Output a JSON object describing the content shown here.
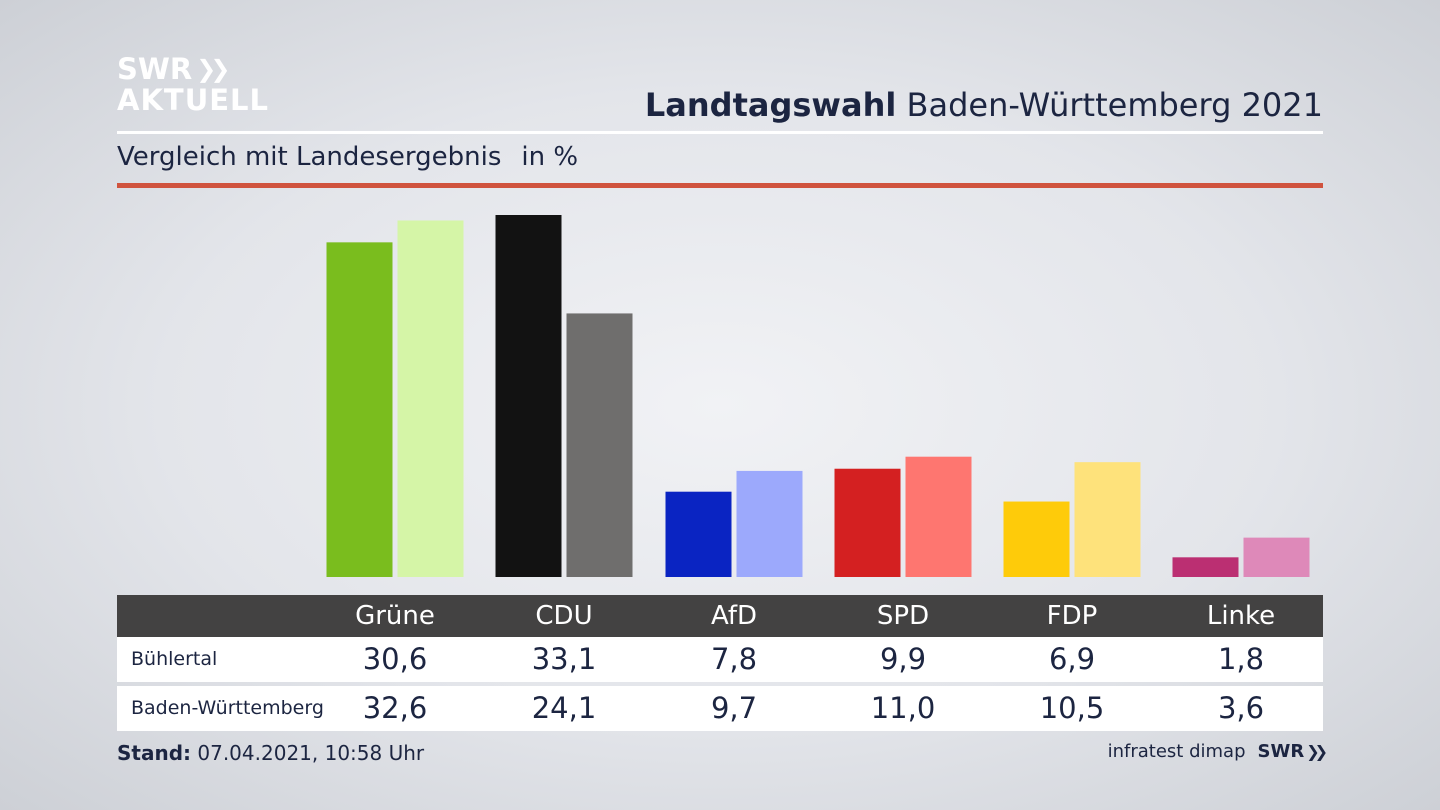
{
  "header": {
    "logo_line1": "SWR",
    "logo_line2": "AKTUELL",
    "title_bold": "Landtagswahl",
    "title_rest": "Baden-Württemberg 2021",
    "subtitle": "Vergleich mit Landesergebnis",
    "unit": "in %"
  },
  "chart_data": {
    "type": "bar",
    "categories": [
      "Grüne",
      "CDU",
      "AfD",
      "SPD",
      "FDP",
      "Linke"
    ],
    "series": [
      {
        "name": "Bühlertal",
        "values": [
          30.6,
          33.1,
          7.8,
          9.9,
          6.9,
          1.8
        ]
      },
      {
        "name": "Baden-Württemberg",
        "values": [
          32.6,
          24.1,
          9.7,
          11.0,
          10.5,
          3.6
        ]
      }
    ],
    "colors": {
      "Bühlertal": [
        "#7abd1e",
        "#121212",
        "#0a24c2",
        "#d42021",
        "#fecb0a",
        "#bb2f72"
      ],
      "Baden-Württemberg": [
        "#d5f5a7",
        "#6f6e6d",
        "#9ca9fc",
        "#fe7670",
        "#fee27b",
        "#de89b9"
      ]
    },
    "ylim": [
      0,
      33.1
    ]
  },
  "table": {
    "rows": [
      {
        "label": "Bühlertal",
        "values": [
          "30,6",
          "33,1",
          "7,8",
          "9,9",
          "6,9",
          "1,8"
        ]
      },
      {
        "label": "Baden-Württemberg",
        "values": [
          "32,6",
          "24,1",
          "9,7",
          "11,0",
          "10,5",
          "3,6"
        ]
      }
    ]
  },
  "footer": {
    "stand_label": "Stand:",
    "stand_value": "07.04.2021, 10:58 Uhr",
    "source": "infratest dimap",
    "brand": "SWR"
  }
}
